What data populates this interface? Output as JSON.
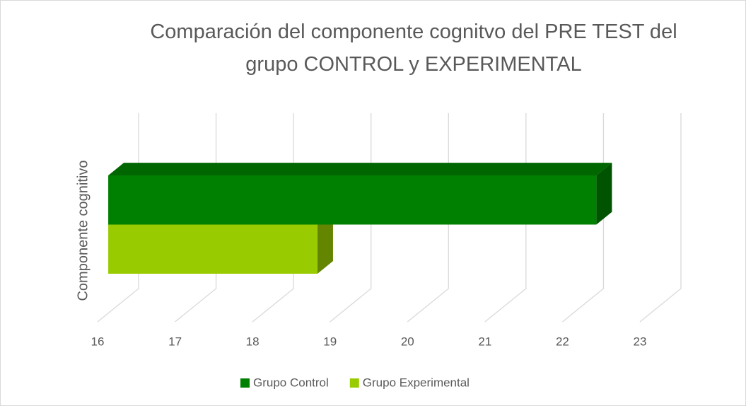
{
  "chart_data": {
    "type": "bar3d_horizontal",
    "title": "Comparación del componente cognitvo del PRE TEST del grupo CONTROL y EXPERIMENTAL",
    "categories": [
      "Componente cognitivo"
    ],
    "series": [
      {
        "name": "Grupo Control",
        "color": "#008000",
        "values": [
          22.3
        ]
      },
      {
        "name": "Grupo Experimental",
        "color": "#99cc00",
        "values": [
          18.7
        ]
      }
    ],
    "xlim": [
      16,
      23
    ],
    "xticks": [
      16,
      17,
      18,
      19,
      20,
      21,
      22,
      23
    ],
    "grid": true,
    "legend": "bottom"
  }
}
